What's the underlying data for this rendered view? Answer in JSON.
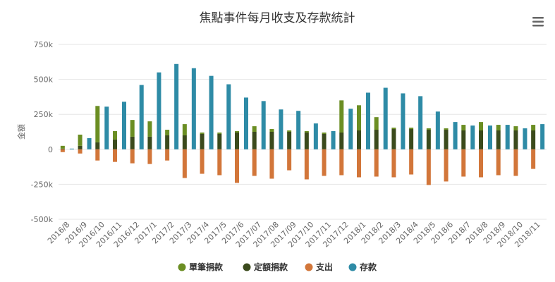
{
  "menu_icon": "hamburger-menu-icon",
  "colors": {
    "single": "#6b8e23",
    "fixed": "#3b4a1c",
    "expense": "#d2763a",
    "deposit": "#2e8ba6"
  },
  "chart_data": {
    "type": "bar",
    "title": "焦點事件每月收支及存款統計",
    "ylabel": "金額",
    "xlabel": "",
    "ylim": [
      -500000,
      750000
    ],
    "ytick_values": [
      -500000,
      -250000,
      0,
      250000,
      500000,
      750000
    ],
    "ytick_labels": [
      "-500k",
      "-250k",
      "0",
      "250k",
      "500k",
      "750k"
    ],
    "categories": [
      "2016/8",
      "2016/9",
      "2016/10",
      "2016/11",
      "2016/12",
      "2017/1",
      "2017/2",
      "2017/3",
      "2017/4",
      "2017/5",
      "2017/6",
      "2017/07",
      "2017/08",
      "2017/09",
      "2017/10",
      "2017/11",
      "2017/12",
      "2018/1",
      "2018/2",
      "2018/3",
      "2018/4",
      "2018/5",
      "2018/6",
      "2018/7",
      "2018/8",
      "2018/9",
      "2018/10",
      "2018/11"
    ],
    "stacked_series": [
      "單筆捐款",
      "定額捐款"
    ],
    "series": [
      {
        "name": "單筆捐款",
        "color_key": "single",
        "values": [
          20000,
          80000,
          260000,
          60000,
          120000,
          110000,
          40000,
          80000,
          10000,
          10000,
          10000,
          40000,
          20000,
          10000,
          10000,
          10000,
          230000,
          180000,
          90000,
          10000,
          10000,
          10000,
          10000,
          40000,
          60000,
          40000,
          30000,
          40000
        ]
      },
      {
        "name": "定額捐款",
        "color_key": "fixed",
        "values": [
          5000,
          25000,
          50000,
          70000,
          90000,
          90000,
          100000,
          100000,
          110000,
          110000,
          120000,
          125000,
          125000,
          125000,
          120000,
          110000,
          120000,
          135000,
          140000,
          145000,
          145000,
          140000,
          140000,
          135000,
          135000,
          135000,
          135000,
          135000
        ]
      },
      {
        "name": "支出",
        "color_key": "expense",
        "values": [
          -20000,
          -30000,
          -80000,
          -90000,
          -100000,
          -105000,
          -80000,
          -205000,
          -175000,
          -185000,
          -240000,
          -190000,
          -210000,
          -150000,
          -215000,
          -190000,
          -185000,
          -200000,
          -195000,
          -200000,
          -180000,
          -255000,
          -230000,
          -195000,
          -200000,
          -185000,
          -190000,
          -140000
        ]
      },
      {
        "name": "存款",
        "color_key": "deposit",
        "values": [
          5000,
          80000,
          305000,
          340000,
          460000,
          550000,
          610000,
          580000,
          525000,
          465000,
          370000,
          345000,
          285000,
          275000,
          185000,
          130000,
          290000,
          405000,
          440000,
          400000,
          380000,
          270000,
          195000,
          170000,
          170000,
          175000,
          150000,
          180000
        ]
      }
    ],
    "legend_position": "bottom-center",
    "grid": true
  }
}
